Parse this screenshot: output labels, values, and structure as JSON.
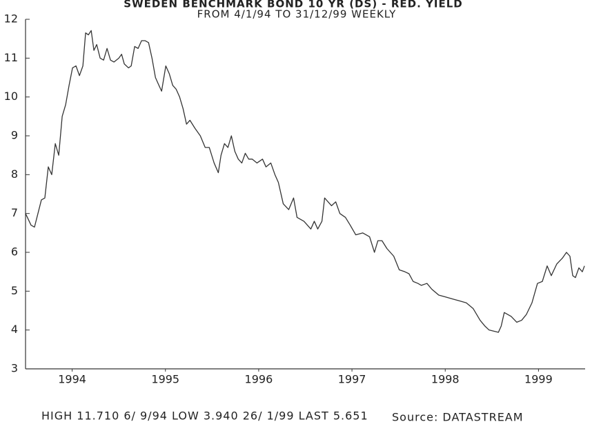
{
  "chart_data": {
    "type": "line",
    "title": "SWEDEN BENCHMARK BOND 10 YR (DS) - RED. YIELD",
    "subtitle": "FROM 4/1/94 TO 31/12/99 WEEKLY",
    "footer": "HIGH 11.710  6/ 9/94 LOW 3.940 26/ 1/99 LAST 5.651",
    "source": "Source: DATASTREAM",
    "color": "#333333",
    "xlim": [
      1994,
      2000
    ],
    "xticks": [
      {
        "value": 1994.5,
        "label": "1994"
      },
      {
        "value": 1995.5,
        "label": "1995"
      },
      {
        "value": 1996.5,
        "label": "1996"
      },
      {
        "value": 1997.5,
        "label": "1997"
      },
      {
        "value": 1998.5,
        "label": "1998"
      },
      {
        "value": 1999.5,
        "label": "1999"
      }
    ],
    "ylim": [
      3,
      12
    ],
    "yticks": [
      3,
      4,
      5,
      6,
      7,
      8,
      9,
      10,
      11,
      12
    ],
    "x": [
      1994.0,
      1994.059,
      1994.096,
      1994.133,
      1994.17,
      1994.207,
      1994.244,
      1994.281,
      1994.319,
      1994.356,
      1994.393,
      1994.43,
      1994.467,
      1994.504,
      1994.541,
      1994.578,
      1994.615,
      1994.644,
      1994.674,
      1994.704,
      1994.733,
      1994.763,
      1994.8,
      1994.837,
      1994.874,
      1994.911,
      1994.948,
      1995.0,
      1995.03,
      1995.059,
      1995.104,
      1995.133,
      1995.17,
      1995.207,
      1995.244,
      1995.281,
      1995.319,
      1995.356,
      1995.393,
      1995.43,
      1995.459,
      1995.504,
      1995.541,
      1995.578,
      1995.615,
      1995.652,
      1995.689,
      1995.726,
      1995.763,
      1995.815,
      1995.874,
      1995.926,
      1995.97,
      1996.022,
      1996.067,
      1996.096,
      1996.133,
      1996.17,
      1996.207,
      1996.244,
      1996.281,
      1996.319,
      1996.356,
      1996.393,
      1996.43,
      1996.481,
      1996.541,
      1996.578,
      1996.63,
      1996.674,
      1996.711,
      1996.763,
      1996.822,
      1996.874,
      1996.911,
      1996.985,
      1997.059,
      1997.096,
      1997.133,
      1997.178,
      1997.207,
      1997.244,
      1997.281,
      1997.326,
      1997.37,
      1997.43,
      1997.481,
      1997.541,
      1997.615,
      1997.689,
      1997.741,
      1997.778,
      1997.822,
      1997.874,
      1997.948,
      1998.007,
      1998.067,
      1998.111,
      1998.156,
      1998.207,
      1998.244,
      1998.304,
      1998.356,
      1998.43,
      1998.504,
      1998.578,
      1998.652,
      1998.726,
      1998.8,
      1998.874,
      1998.926,
      1998.97,
      1999.07,
      1999.1,
      1999.133,
      1999.207,
      1999.267,
      1999.319,
      1999.37,
      1999.43,
      1999.489,
      1999.541,
      1999.593,
      1999.637,
      1999.696,
      1999.756,
      1999.8,
      1999.837,
      1999.867,
      1999.896,
      1999.933,
      1999.97,
      1999.993
    ],
    "values": [
      7.0,
      6.7,
      6.65,
      7.0,
      7.35,
      7.4,
      8.2,
      8.0,
      8.8,
      8.5,
      9.5,
      9.8,
      10.3,
      10.75,
      10.8,
      10.55,
      10.8,
      11.65,
      11.6,
      11.71,
      11.2,
      11.35,
      11.0,
      10.95,
      11.25,
      10.95,
      10.9,
      11.0,
      11.1,
      10.85,
      10.75,
      10.8,
      11.3,
      11.25,
      11.45,
      11.45,
      11.4,
      11.0,
      10.5,
      10.3,
      10.15,
      10.8,
      10.6,
      10.3,
      10.2,
      10.0,
      9.7,
      9.3,
      9.4,
      9.2,
      9.0,
      8.7,
      8.7,
      8.3,
      8.05,
      8.5,
      8.8,
      8.7,
      9.0,
      8.6,
      8.4,
      8.3,
      8.55,
      8.4,
      8.4,
      8.3,
      8.4,
      8.2,
      8.3,
      8.0,
      7.8,
      7.25,
      7.1,
      7.4,
      6.9,
      6.8,
      6.6,
      6.8,
      6.6,
      6.8,
      7.4,
      7.3,
      7.2,
      7.3,
      7.0,
      6.9,
      6.7,
      6.45,
      6.5,
      6.4,
      6.0,
      6.3,
      6.3,
      6.1,
      5.9,
      5.55,
      5.5,
      5.45,
      5.25,
      5.2,
      5.15,
      5.2,
      5.05,
      4.9,
      4.85,
      4.8,
      4.75,
      4.7,
      4.55,
      4.25,
      4.1,
      4.0,
      3.94,
      4.1,
      4.45,
      4.35,
      4.2,
      4.25,
      4.4,
      4.7,
      5.2,
      5.25,
      5.65,
      5.4,
      5.7,
      5.85,
      6.0,
      5.9,
      5.4,
      5.35,
      5.6,
      5.5,
      5.651
    ]
  }
}
